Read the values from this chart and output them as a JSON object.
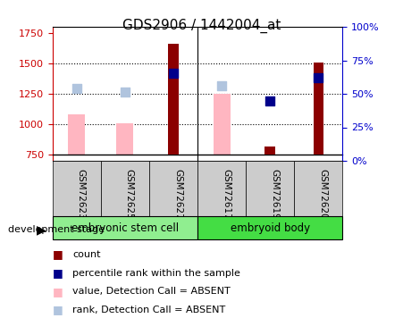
{
  "title": "GDS2906 / 1442004_at",
  "samples": [
    "GSM72623",
    "GSM72625",
    "GSM72627",
    "GSM72617",
    "GSM72619",
    "GSM72620"
  ],
  "groups": [
    {
      "name": "embryonic stem cell",
      "samples": [
        "GSM72623",
        "GSM72625",
        "GSM72627"
      ],
      "color": "#90EE90"
    },
    {
      "name": "embryoid body",
      "samples": [
        "GSM72617",
        "GSM72619",
        "GSM72620"
      ],
      "color": "#44DD44"
    }
  ],
  "ylim_left": [
    700,
    1800
  ],
  "ylim_right": [
    0,
    100
  ],
  "yticks_left": [
    750,
    1000,
    1250,
    1500,
    1750
  ],
  "yticks_right": [
    0,
    25,
    50,
    75,
    100
  ],
  "ytick_labels_right": [
    "0%",
    "25%",
    "50%",
    "75%",
    "100%"
  ],
  "bar_baseline": 750,
  "count_bars": {
    "GSM72623": null,
    "GSM72625": null,
    "GSM72627": 1660,
    "GSM72617": null,
    "GSM72619": 820,
    "GSM72620": 1510
  },
  "value_absent_bars": {
    "GSM72623": 1080,
    "GSM72625": 1005,
    "GSM72627": null,
    "GSM72617": 1250,
    "GSM72619": null,
    "GSM72620": null
  },
  "rank_absent_dots": {
    "GSM72623": 1295,
    "GSM72625": 1265,
    "GSM72627": null,
    "GSM72617": 1315,
    "GSM72619": null,
    "GSM72620": null
  },
  "percentile_dots": {
    "GSM72623": null,
    "GSM72625": null,
    "GSM72627": 1420,
    "GSM72617": null,
    "GSM72619": 1195,
    "GSM72620": 1380
  },
  "count_color": "#8B0000",
  "value_absent_color": "#FFB6C1",
  "rank_absent_color": "#B0C4DE",
  "percentile_color": "#00008B",
  "bar_width": 0.35,
  "dot_size": 60,
  "legend_items": [
    {
      "label": "count",
      "color": "#8B0000",
      "marker": "s"
    },
    {
      "label": "percentile rank within the sample",
      "color": "#00008B",
      "marker": "s"
    },
    {
      "label": "value, Detection Call = ABSENT",
      "color": "#FFB6C1",
      "marker": "s"
    },
    {
      "label": "rank, Detection Call = ABSENT",
      "color": "#B0C4DE",
      "marker": "s"
    }
  ],
  "group_label": "development stage",
  "left_axis_color": "#CC0000",
  "right_axis_color": "#0000CC"
}
